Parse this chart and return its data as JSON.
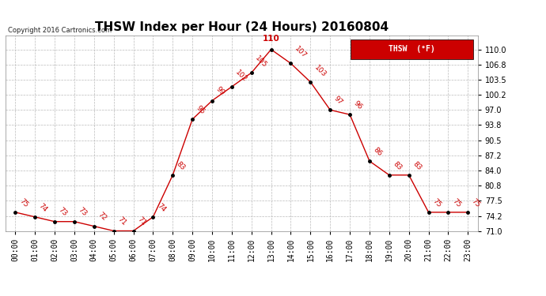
{
  "title": "THSW Index per Hour (24 Hours) 20160804",
  "copyright": "Copyright 2016 Cartronics.com",
  "legend_label": "THSW  (°F)",
  "hours": [
    0,
    1,
    2,
    3,
    4,
    5,
    6,
    7,
    8,
    9,
    10,
    11,
    12,
    13,
    14,
    15,
    16,
    17,
    18,
    19,
    20,
    21,
    22,
    23
  ],
  "values": [
    75,
    74,
    73,
    73,
    72,
    71,
    71,
    74,
    83,
    95,
    99,
    102,
    105,
    110,
    107,
    103,
    97,
    96,
    86,
    83,
    83,
    75,
    75,
    75
  ],
  "x_labels": [
    "00:00",
    "01:00",
    "02:00",
    "03:00",
    "04:00",
    "05:00",
    "06:00",
    "07:00",
    "08:00",
    "09:00",
    "10:00",
    "11:00",
    "12:00",
    "13:00",
    "14:00",
    "15:00",
    "16:00",
    "17:00",
    "18:00",
    "19:00",
    "20:00",
    "21:00",
    "22:00",
    "23:00"
  ],
  "ylim": [
    71.0,
    113.0
  ],
  "yticks": [
    71.0,
    74.2,
    77.5,
    80.8,
    84.0,
    87.2,
    90.5,
    93.8,
    97.0,
    100.2,
    103.5,
    106.8,
    110.0
  ],
  "ytick_labels": [
    "71.0",
    "74.2",
    "77.5",
    "80.8",
    "84.0",
    "87.2",
    "90.5",
    "93.8",
    "97.0",
    "100.2",
    "103.5",
    "106.8",
    "110.0"
  ],
  "line_color": "#cc0000",
  "marker_color": "#000000",
  "bg_color": "#ffffff",
  "grid_color": "#bbbbbb",
  "title_fontsize": 11,
  "label_fontsize": 7,
  "annotation_fontsize": 6.5,
  "legend_bg": "#cc0000",
  "legend_text_color": "#ffffff"
}
